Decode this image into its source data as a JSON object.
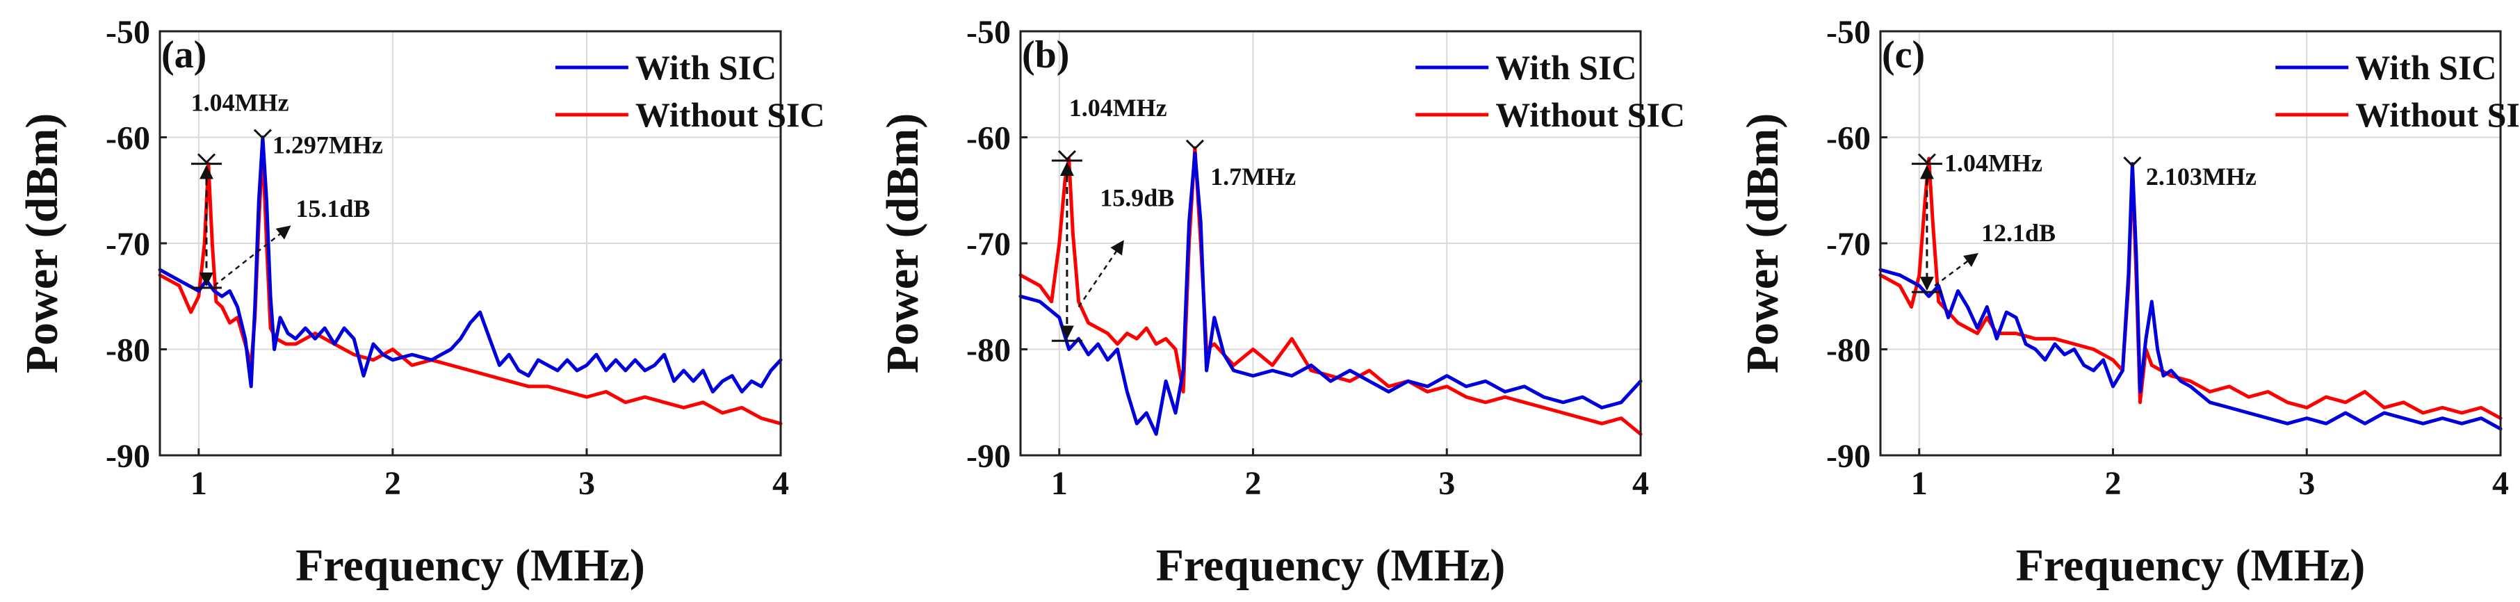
{
  "chart_data": [
    {
      "type": "line",
      "panel_label": "(a)",
      "xlabel": "Frequency (MHz)",
      "ylabel": "Power (dBm)",
      "xlim": [
        0.8,
        4
      ],
      "ylim": [
        -90,
        -50
      ],
      "xticks": [
        1,
        2,
        3,
        4
      ],
      "yticks": [
        -90,
        -80,
        -70,
        -60,
        -50
      ],
      "grid": true,
      "legend_position": "top-right",
      "series": [
        {
          "name": "With SIC",
          "color": "#0000dd",
          "x": [
            0.8,
            0.9,
            1.0,
            1.04,
            1.08,
            1.12,
            1.16,
            1.2,
            1.24,
            1.27,
            1.29,
            1.31,
            1.33,
            1.35,
            1.37,
            1.39,
            1.42,
            1.46,
            1.5,
            1.55,
            1.6,
            1.65,
            1.7,
            1.75,
            1.8,
            1.85,
            1.9,
            1.95,
            2.0,
            2.1,
            2.2,
            2.3,
            2.35,
            2.4,
            2.45,
            2.5,
            2.55,
            2.6,
            2.65,
            2.7,
            2.75,
            2.8,
            2.85,
            2.9,
            2.95,
            3.0,
            3.05,
            3.1,
            3.15,
            3.2,
            3.25,
            3.3,
            3.35,
            3.4,
            3.45,
            3.5,
            3.55,
            3.6,
            3.65,
            3.7,
            3.75,
            3.8,
            3.85,
            3.9,
            3.95,
            4.0
          ],
          "y": [
            -72.5,
            -73.5,
            -74.5,
            -73.5,
            -74.5,
            -75,
            -74.5,
            -76,
            -79,
            -83.5,
            -76,
            -66,
            -60,
            -66,
            -75,
            -80,
            -77,
            -78.5,
            -79,
            -78,
            -79,
            -78,
            -79.5,
            -78,
            -79,
            -82.5,
            -79.5,
            -80.5,
            -81,
            -80.5,
            -81,
            -80,
            -79,
            -77.5,
            -76.5,
            -79,
            -81.5,
            -80.5,
            -82,
            -82.5,
            -81,
            -81.5,
            -82,
            -81,
            -82,
            -81.5,
            -80.5,
            -82,
            -81,
            -82,
            -81,
            -82,
            -81.5,
            -80.5,
            -83,
            -82,
            -83,
            -82,
            -84,
            -83,
            -82.5,
            -84,
            -83,
            -83.5,
            -82,
            -81
          ]
        },
        {
          "name": "Without SIC",
          "color": "#ff0000",
          "x": [
            0.8,
            0.9,
            0.96,
            1.0,
            1.03,
            1.05,
            1.07,
            1.09,
            1.12,
            1.16,
            1.2,
            1.24,
            1.27,
            1.29,
            1.31,
            1.33,
            1.35,
            1.37,
            1.4,
            1.45,
            1.5,
            1.6,
            1.7,
            1.8,
            1.9,
            2.0,
            2.1,
            2.2,
            2.3,
            2.4,
            2.5,
            2.6,
            2.7,
            2.8,
            2.9,
            3.0,
            3.1,
            3.2,
            3.3,
            3.4,
            3.5,
            3.6,
            3.7,
            3.8,
            3.9,
            4.0
          ],
          "y": [
            -73,
            -74,
            -76.5,
            -75,
            -70,
            -62.5,
            -70,
            -75.5,
            -76,
            -77.5,
            -77,
            -79.5,
            -81.5,
            -77,
            -68,
            -61,
            -70,
            -78,
            -79,
            -79.5,
            -79.5,
            -78.5,
            -79.5,
            -80.5,
            -81,
            -80,
            -81.5,
            -81,
            -81.5,
            -82,
            -82.5,
            -83,
            -83.5,
            -83.5,
            -84,
            -84.5,
            -84,
            -85,
            -84.5,
            -85,
            -85.5,
            -85,
            -86,
            -85.5,
            -86.5,
            -87
          ]
        }
      ],
      "annotations": [
        {
          "text": "1.04MHz",
          "x": 0.96,
          "y": -57.5
        },
        {
          "text": "1.297MHz",
          "x": 1.38,
          "y": -61.5
        },
        {
          "text": "15.1dB",
          "x": 1.5,
          "y": -67.5
        }
      ],
      "arrow": {
        "x": 1.04,
        "top": -62.5,
        "bottom": -74.2,
        "pointer_from": [
          1.08,
          -74
        ],
        "pointer_to": [
          1.47,
          -68.4
        ]
      }
    },
    {
      "type": "line",
      "panel_label": "(b)",
      "xlabel": "Frequency (MHz)",
      "ylabel": "Power (dBm)",
      "xlim": [
        0.8,
        4
      ],
      "ylim": [
        -90,
        -50
      ],
      "xticks": [
        1,
        2,
        3,
        4
      ],
      "yticks": [
        -90,
        -80,
        -70,
        -60,
        -50
      ],
      "grid": true,
      "legend_position": "top-right",
      "series": [
        {
          "name": "With SIC",
          "color": "#0000dd",
          "x": [
            0.8,
            0.9,
            1.0,
            1.05,
            1.1,
            1.15,
            1.2,
            1.25,
            1.3,
            1.35,
            1.4,
            1.45,
            1.5,
            1.55,
            1.6,
            1.64,
            1.67,
            1.7,
            1.73,
            1.76,
            1.8,
            1.85,
            1.9,
            2.0,
            2.1,
            2.2,
            2.3,
            2.4,
            2.5,
            2.6,
            2.7,
            2.8,
            2.9,
            3.0,
            3.1,
            3.2,
            3.3,
            3.4,
            3.5,
            3.6,
            3.7,
            3.8,
            3.9,
            4.0
          ],
          "y": [
            -75,
            -75.5,
            -77,
            -80,
            -79,
            -80.5,
            -79.5,
            -81,
            -80,
            -84,
            -87,
            -86,
            -88,
            -83,
            -86,
            -82,
            -68,
            -61.5,
            -68,
            -82,
            -77,
            -80.5,
            -82,
            -82.5,
            -82,
            -82.5,
            -81.5,
            -83,
            -82,
            -83,
            -84,
            -83,
            -83.5,
            -82.5,
            -83.5,
            -83,
            -84,
            -83.5,
            -84.5,
            -85,
            -84.5,
            -85.5,
            -85,
            -83
          ]
        },
        {
          "name": "Without SIC",
          "color": "#ff0000",
          "x": [
            0.8,
            0.9,
            0.96,
            1.0,
            1.03,
            1.05,
            1.07,
            1.1,
            1.15,
            1.2,
            1.25,
            1.3,
            1.35,
            1.4,
            1.45,
            1.5,
            1.55,
            1.6,
            1.64,
            1.67,
            1.7,
            1.73,
            1.76,
            1.8,
            1.9,
            2.0,
            2.1,
            2.2,
            2.3,
            2.4,
            2.5,
            2.6,
            2.7,
            2.8,
            2.9,
            3.0,
            3.1,
            3.2,
            3.3,
            3.4,
            3.5,
            3.6,
            3.7,
            3.8,
            3.9,
            4.0
          ],
          "y": [
            -73,
            -74,
            -75.5,
            -70,
            -64,
            -62,
            -69,
            -75.5,
            -77.5,
            -78,
            -78.5,
            -79.5,
            -78.5,
            -79,
            -78,
            -79.5,
            -79,
            -80,
            -84,
            -70,
            -61,
            -70,
            -80,
            -79.5,
            -81.5,
            -80,
            -81.5,
            -79,
            -82,
            -82.5,
            -83,
            -82,
            -83.5,
            -83,
            -84,
            -83.5,
            -84.5,
            -85,
            -84.5,
            -85,
            -85.5,
            -86,
            -86.5,
            -87,
            -86.5,
            -88
          ]
        }
      ],
      "annotations": [
        {
          "text": "1.04MHz",
          "x": 1.05,
          "y": -58
        },
        {
          "text": "15.9dB",
          "x": 1.21,
          "y": -66.5
        },
        {
          "text": "1.7MHz",
          "x": 1.78,
          "y": -64.5
        }
      ],
      "arrow": {
        "x": 1.04,
        "top": -62.2,
        "bottom": -79.2,
        "pointer_from": [
          1.1,
          -76
        ],
        "pointer_to": [
          1.33,
          -69.8
        ]
      }
    },
    {
      "type": "line",
      "panel_label": "(c)",
      "xlabel": "Frequency (MHz)",
      "ylabel": "Power (dBm)",
      "xlim": [
        0.8,
        4
      ],
      "ylim": [
        -90,
        -50
      ],
      "xticks": [
        1,
        2,
        3,
        4
      ],
      "yticks": [
        -90,
        -80,
        -70,
        -60,
        -50
      ],
      "grid": true,
      "legend_position": "top-right",
      "series": [
        {
          "name": "With SIC",
          "color": "#0000dd",
          "x": [
            0.8,
            0.9,
            1.0,
            1.05,
            1.1,
            1.15,
            1.2,
            1.25,
            1.3,
            1.35,
            1.4,
            1.45,
            1.5,
            1.55,
            1.6,
            1.65,
            1.7,
            1.75,
            1.8,
            1.85,
            1.9,
            1.95,
            2.0,
            2.05,
            2.08,
            2.1,
            2.12,
            2.14,
            2.17,
            2.2,
            2.23,
            2.26,
            2.3,
            2.35,
            2.4,
            2.5,
            2.6,
            2.7,
            2.8,
            2.9,
            3.0,
            3.1,
            3.2,
            3.3,
            3.4,
            3.5,
            3.6,
            3.7,
            3.8,
            3.9,
            4.0
          ],
          "y": [
            -72.5,
            -73,
            -74,
            -75,
            -74,
            -77,
            -74.5,
            -76,
            -78,
            -76,
            -79,
            -76.5,
            -77,
            -79.5,
            -80,
            -81,
            -79.5,
            -80.5,
            -80,
            -81.5,
            -82,
            -81,
            -83.5,
            -82,
            -73,
            -62.5,
            -71,
            -84,
            -79,
            -75.5,
            -80,
            -82.5,
            -82,
            -83,
            -83.5,
            -85,
            -85.5,
            -86,
            -86.5,
            -87,
            -86.5,
            -87,
            -86,
            -87,
            -86,
            -86.5,
            -87,
            -86.5,
            -87,
            -86.5,
            -87.5
          ]
        },
        {
          "name": "Without SIC",
          "color": "#ff0000",
          "x": [
            0.8,
            0.9,
            0.96,
            1.0,
            1.03,
            1.05,
            1.07,
            1.1,
            1.15,
            1.2,
            1.25,
            1.3,
            1.35,
            1.4,
            1.5,
            1.6,
            1.7,
            1.8,
            1.9,
            2.0,
            2.05,
            2.08,
            2.1,
            2.12,
            2.14,
            2.17,
            2.2,
            2.3,
            2.4,
            2.5,
            2.6,
            2.7,
            2.8,
            2.9,
            3.0,
            3.1,
            3.2,
            3.3,
            3.4,
            3.5,
            3.6,
            3.7,
            3.8,
            3.9,
            4.0
          ],
          "y": [
            -73,
            -74,
            -76,
            -73,
            -66,
            -62,
            -68,
            -75.5,
            -76.5,
            -77.5,
            -78,
            -78.5,
            -77,
            -78.5,
            -78.5,
            -79,
            -79,
            -79.5,
            -80,
            -81,
            -82,
            -74,
            -63,
            -73,
            -85,
            -80,
            -81.5,
            -82.5,
            -83,
            -84,
            -83.5,
            -84.5,
            -84,
            -85,
            -85.5,
            -84.5,
            -85,
            -84,
            -85.5,
            -85,
            -86,
            -85.5,
            -86,
            -85.5,
            -86.5
          ]
        }
      ],
      "annotations": [
        {
          "text": "1.04MHz",
          "x": 1.13,
          "y": -63.2
        },
        {
          "text": "2.103MHz",
          "x": 2.17,
          "y": -64.5
        },
        {
          "text": "12.1dB",
          "x": 1.32,
          "y": -69.8
        }
      ],
      "arrow": {
        "x": 1.04,
        "top": -62.5,
        "bottom": -74.6,
        "pointer_from": [
          1.08,
          -74
        ],
        "pointer_to": [
          1.3,
          -71
        ]
      }
    }
  ]
}
